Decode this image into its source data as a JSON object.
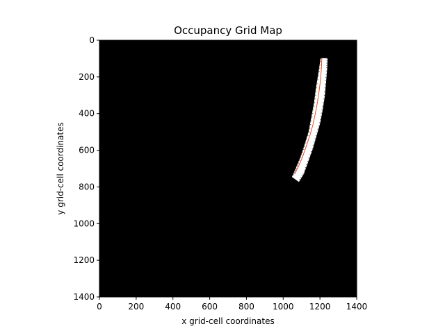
{
  "chart_data": {
    "type": "heatmap",
    "title": "Occupancy Grid Map",
    "xlabel": "x grid-cell coordinates",
    "ylabel": "y grid-cell coordinates",
    "xlim": [
      0,
      1400
    ],
    "ylim": [
      1400,
      0
    ],
    "y_axis_inverted": true,
    "xticks": [
      0,
      200,
      400,
      600,
      800,
      1000,
      1200,
      1400
    ],
    "yticks": [
      0,
      200,
      400,
      600,
      800,
      1000,
      1200,
      1400
    ],
    "grid": false,
    "legend": "none",
    "colors": {
      "unknown": "#000000",
      "free": "#ffffff",
      "trajectory": "#e8501e",
      "obstacle": "#555555"
    },
    "free_corridor": {
      "left_edge": [
        [
          1205,
          100
        ],
        [
          1195,
          170
        ],
        [
          1180,
          260
        ],
        [
          1170,
          340
        ],
        [
          1155,
          420
        ],
        [
          1140,
          500
        ],
        [
          1115,
          580
        ],
        [
          1095,
          640
        ],
        [
          1070,
          700
        ],
        [
          1050,
          745
        ]
      ],
      "right_edge": [
        [
          1240,
          100
        ],
        [
          1238,
          150
        ],
        [
          1232,
          220
        ],
        [
          1225,
          300
        ],
        [
          1213,
          380
        ],
        [
          1200,
          450
        ],
        [
          1180,
          520
        ],
        [
          1160,
          590
        ],
        [
          1135,
          660
        ],
        [
          1110,
          730
        ],
        [
          1085,
          770
        ]
      ]
    },
    "trajectory": [
      [
        1210,
        100
      ],
      [
        1208,
        150
      ],
      [
        1203,
        220
      ],
      [
        1195,
        280
      ],
      [
        1186,
        340
      ],
      [
        1175,
        400
      ],
      [
        1162,
        460
      ],
      [
        1145,
        520
      ],
      [
        1125,
        580
      ],
      [
        1104,
        640
      ],
      [
        1082,
        690
      ],
      [
        1062,
        730
      ]
    ]
  }
}
